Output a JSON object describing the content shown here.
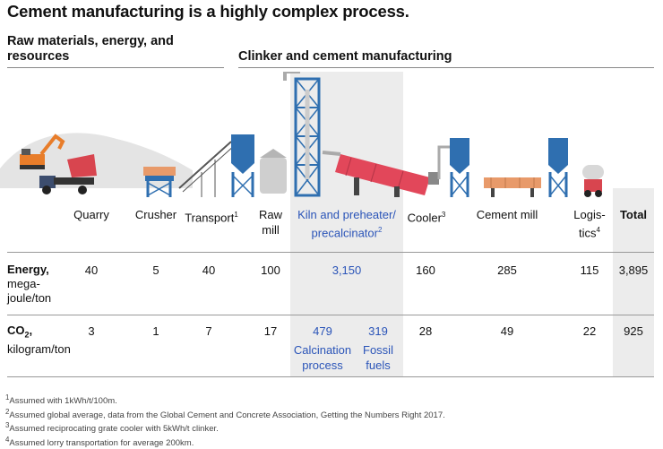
{
  "title": "Cement manufacturing is a highly complex process.",
  "sections": {
    "left": "Raw materials, energy, and resources",
    "right": "Clinker and cement manufacturing"
  },
  "columns": {
    "quarry": "Quarry",
    "crusher": "Crusher",
    "transport": "Transport",
    "transport_sup": "1",
    "raw_mill_1": "Raw",
    "raw_mill_2": "mill",
    "kiln_1": "Kiln and preheater/",
    "kiln_2": "precalcinator",
    "kiln_sup": "2",
    "cooler": "Cooler",
    "cooler_sup": "3",
    "cement_mill": "Cement mill",
    "logistics_1": "Logis-",
    "logistics_2": "tics",
    "logistics_sup": "4",
    "total": "Total"
  },
  "energy": {
    "label": "Energy,",
    "unit_1": "mega-",
    "unit_2": "joule/ton",
    "quarry": "40",
    "crusher": "5",
    "transport": "40",
    "raw_mill": "100",
    "kiln": "3,150",
    "cooler": "160",
    "cement_mill": "285",
    "logistics": "115",
    "total": "3,895"
  },
  "co2": {
    "label_main": "CO",
    "label_sub": "2",
    "label_comma": ",",
    "unit": "kilogram/ton",
    "quarry": "3",
    "crusher": "1",
    "transport": "7",
    "raw_mill": "17",
    "calcination_value": "479",
    "calcination_label_1": "Calcination",
    "calcination_label_2": "process",
    "fossil_value": "319",
    "fossil_label_1": "Fossil",
    "fossil_label_2": "fuels",
    "cooler": "28",
    "cement_mill": "49",
    "logistics": "22",
    "total": "925"
  },
  "footnotes": [
    "Assumed with 1kWh/t/100m.",
    "Assumed global average, data from the Global Cement and Concrete Association, Getting the Numbers Right 2017.",
    "Assumed reciprocating grate cooler with 5kWh/t clinker.",
    "Assumed lorry transportation for average 200km."
  ],
  "footnote_marks": [
    "1",
    "2",
    "3",
    "4"
  ],
  "colors": {
    "kiln_red": "#e2475a",
    "tower_blue": "#2f6fb0",
    "label_blue": "#2a54b8",
    "shade": "#ececec"
  }
}
